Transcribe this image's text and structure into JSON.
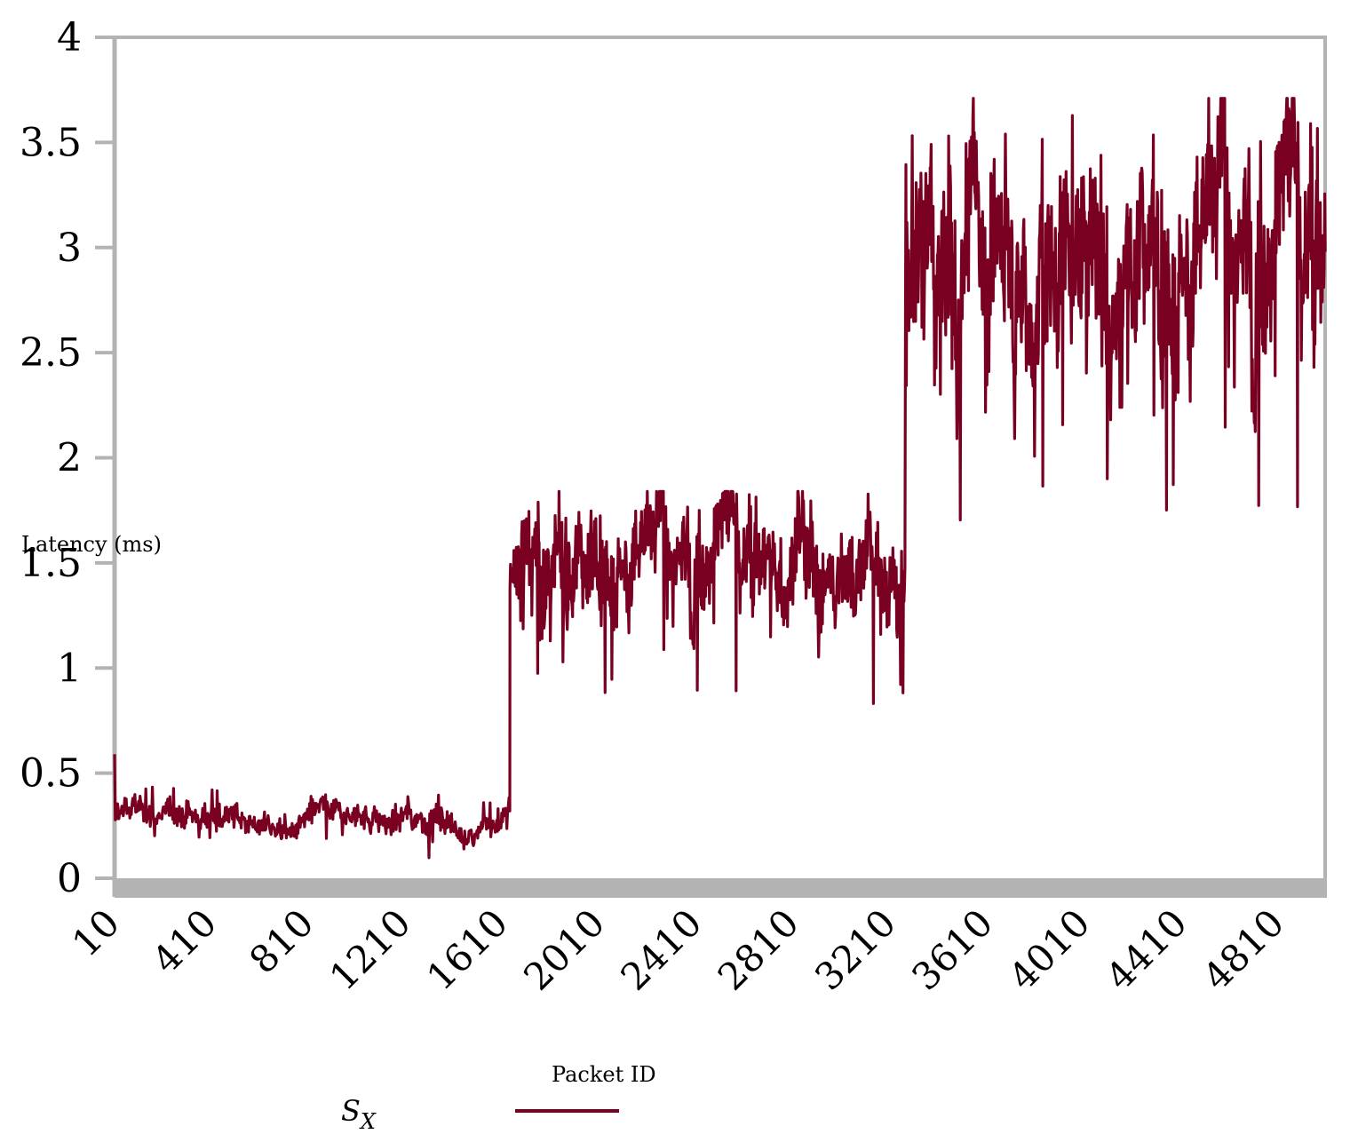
{
  "chart_data": {
    "type": "line",
    "title": "",
    "xlabel": "Packet ID",
    "ylabel": "Latency (ms)",
    "ylim": [
      0,
      4
    ],
    "xlim": [
      10,
      5000
    ],
    "yticks": [
      "0",
      "0.5",
      "1",
      "1.5",
      "2",
      "2.5",
      "3",
      "3.5",
      "4"
    ],
    "xticks": [
      "10",
      "410",
      "810",
      "1210",
      "1610",
      "2010",
      "2410",
      "2810",
      "3210",
      "3610",
      "4010",
      "4410",
      "4810"
    ],
    "grid": false,
    "legend_position": "bottom-center",
    "series": [
      {
        "name": "S_X",
        "label_main": "S",
        "label_sub": "X",
        "color": "#7a0022",
        "segments": [
          {
            "x_start": 10,
            "x_end": 1640,
            "mean": 0.29,
            "noise": 0.045,
            "min": 0.09,
            "max": 0.44,
            "start_value": 0.59
          },
          {
            "x_start": 1640,
            "x_end": 3270,
            "mean": 1.52,
            "noise": 0.17,
            "min": 0.81,
            "max": 1.84
          },
          {
            "x_start": 3270,
            "x_end": 5000,
            "mean": 2.98,
            "noise": 0.34,
            "min": 1.61,
            "max": 3.71
          }
        ]
      }
    ]
  }
}
